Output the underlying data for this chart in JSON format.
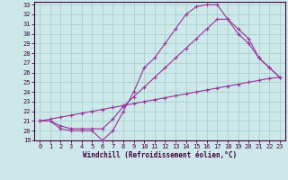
{
  "xlabel": "Windchill (Refroidissement éolien,°C)",
  "bg_color": "#cce8e8",
  "grid_color": "#aacfcf",
  "line_color": "#993399",
  "curve1_x": [
    0,
    1,
    2,
    3,
    4,
    5,
    6,
    7,
    8,
    9,
    10,
    11,
    12,
    13,
    14,
    15,
    16,
    17,
    18,
    19,
    20,
    21,
    22,
    23
  ],
  "curve1_y": [
    21.0,
    21.0,
    20.2,
    20.0,
    20.0,
    20.0,
    19.0,
    20.0,
    22.0,
    24.0,
    26.5,
    27.5,
    29.0,
    30.5,
    32.0,
    32.8,
    33.0,
    33.0,
    31.5,
    30.5,
    29.5,
    27.5,
    26.5,
    25.5
  ],
  "curve2_x": [
    0,
    1,
    2,
    3,
    4,
    5,
    6,
    7,
    8,
    9,
    10,
    11,
    12,
    13,
    14,
    15,
    16,
    17,
    18,
    19,
    20,
    21,
    22,
    23
  ],
  "curve2_y": [
    21.0,
    21.0,
    20.5,
    20.2,
    20.2,
    20.2,
    20.2,
    21.2,
    22.5,
    23.5,
    24.5,
    25.5,
    26.5,
    27.5,
    28.5,
    29.5,
    30.5,
    31.5,
    31.5,
    30.0,
    29.0,
    27.5,
    26.5,
    25.5
  ],
  "curve3_x": [
    0,
    1,
    2,
    3,
    4,
    5,
    6,
    7,
    8,
    9,
    10,
    11,
    12,
    13,
    14,
    15,
    16,
    17,
    18,
    19,
    20,
    21,
    22,
    23
  ],
  "curve3_y": [
    21.0,
    21.2,
    21.4,
    21.6,
    21.8,
    22.0,
    22.2,
    22.4,
    22.6,
    22.8,
    23.0,
    23.2,
    23.4,
    23.6,
    23.8,
    24.0,
    24.2,
    24.4,
    24.6,
    24.8,
    25.0,
    25.2,
    25.4,
    25.5
  ],
  "xlim": [
    0,
    23
  ],
  "ylim": [
    19,
    33
  ],
  "xticks": [
    0,
    1,
    2,
    3,
    4,
    5,
    6,
    7,
    8,
    9,
    10,
    11,
    12,
    13,
    14,
    15,
    16,
    17,
    18,
    19,
    20,
    21,
    22,
    23
  ],
  "yticks": [
    19,
    20,
    21,
    22,
    23,
    24,
    25,
    26,
    27,
    28,
    29,
    30,
    31,
    32,
    33
  ]
}
